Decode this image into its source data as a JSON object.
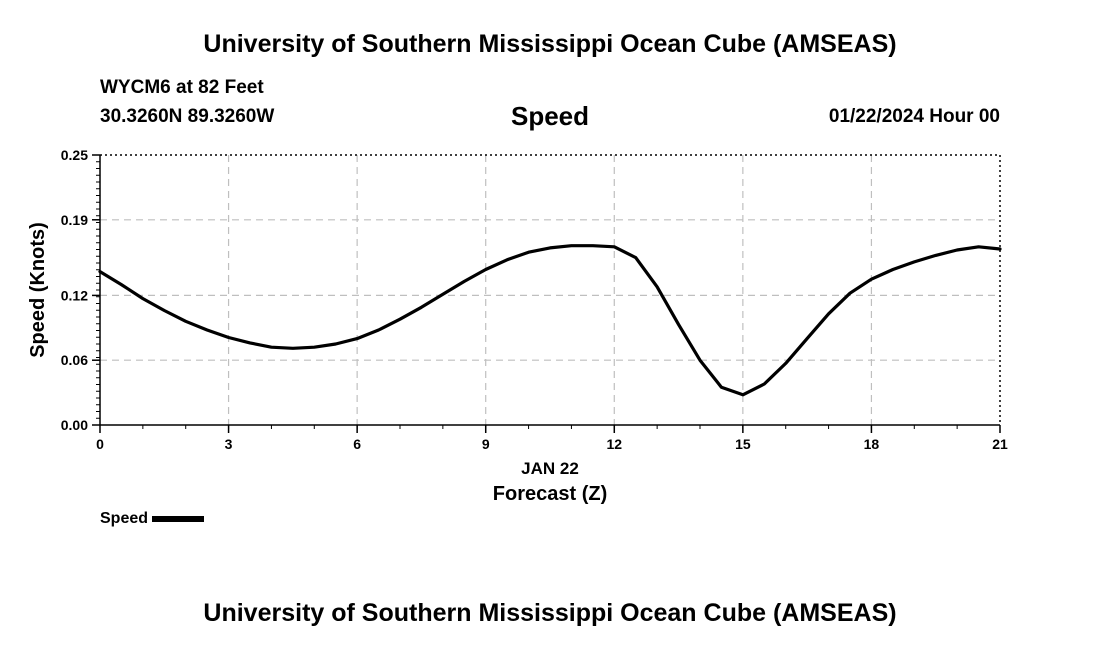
{
  "header": {
    "title": "University of Southern Mississippi Ocean Cube (AMSEAS)",
    "station": "WYCM6 at 82 Feet",
    "coords": "30.3260N  89.3260W",
    "plot_title": "Speed",
    "datetime": "01/22/2024 Hour 00"
  },
  "footer": {
    "title": "University of Southern Mississippi Ocean Cube (AMSEAS)"
  },
  "legend": {
    "label": "Speed",
    "color": "#000000"
  },
  "chart_data": {
    "type": "line",
    "title": "Speed",
    "xlabel": "Forecast (Z)",
    "xlabel_date": "JAN 22",
    "ylabel": "Speed (Knots)",
    "xlim": [
      0,
      21
    ],
    "ylim": [
      0,
      0.25
    ],
    "xticks": [
      0,
      3,
      6,
      9,
      12,
      15,
      18,
      21
    ],
    "yticks": [
      0.0,
      0.06,
      0.12,
      0.19,
      0.25
    ],
    "ytick_labels": [
      "0.00",
      "0.06",
      "0.12",
      "0.19",
      "0.25"
    ],
    "grid": true,
    "legend_position": "bottom-left",
    "series": [
      {
        "name": "Speed",
        "color": "#000000",
        "x": [
          0,
          0.5,
          1,
          1.5,
          2,
          2.5,
          3,
          3.5,
          4,
          4.5,
          5,
          5.5,
          6,
          6.5,
          7,
          7.5,
          8,
          8.5,
          9,
          9.5,
          10,
          10.5,
          11,
          11.5,
          12,
          12.5,
          13,
          13.5,
          14,
          14.5,
          15,
          15.5,
          16,
          16.5,
          17,
          17.5,
          18,
          18.5,
          19,
          19.5,
          20,
          20.5,
          21
        ],
        "values": [
          0.142,
          0.13,
          0.117,
          0.106,
          0.096,
          0.088,
          0.081,
          0.076,
          0.072,
          0.071,
          0.072,
          0.075,
          0.08,
          0.088,
          0.098,
          0.109,
          0.121,
          0.133,
          0.144,
          0.153,
          0.16,
          0.164,
          0.166,
          0.166,
          0.165,
          0.155,
          0.128,
          0.093,
          0.06,
          0.035,
          0.028,
          0.038,
          0.057,
          0.08,
          0.103,
          0.122,
          0.135,
          0.144,
          0.151,
          0.157,
          0.162,
          0.165,
          0.163
        ]
      }
    ]
  }
}
